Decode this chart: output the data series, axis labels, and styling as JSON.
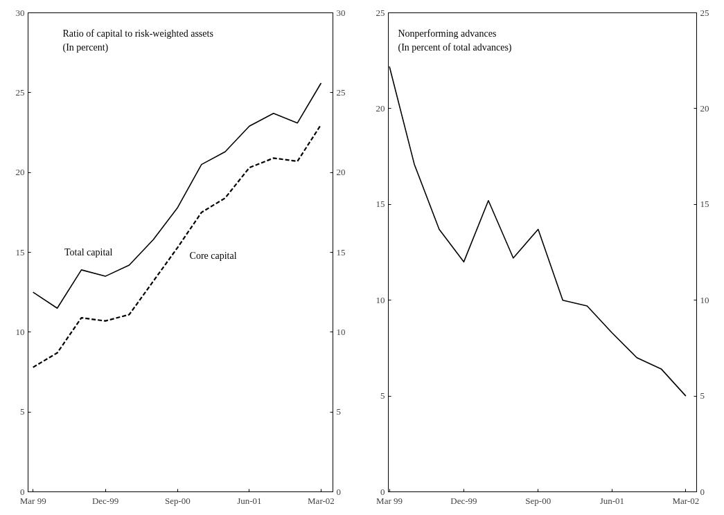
{
  "chart_data": [
    {
      "type": "line",
      "title": "Ratio of capital to risk-weighted assets\n(In percent)",
      "grid": false,
      "xlim": [
        "1999-02-10",
        "2002-04-15"
      ],
      "xticks": [
        {
          "value": "1999-03",
          "label": "Mar 99"
        },
        {
          "value": "1999-12",
          "label": "Dec-99"
        },
        {
          "value": "2000-09",
          "label": "Sep-00"
        },
        {
          "value": "2001-06",
          "label": "Jun-01"
        },
        {
          "value": "2002-03",
          "label": "Mar-02"
        }
      ],
      "ylim": [
        0,
        30
      ],
      "yticks": [
        0,
        5,
        10,
        15,
        20,
        25,
        30
      ],
      "y2lim": [
        0,
        30
      ],
      "y2ticks": [
        0,
        5,
        10,
        15,
        20,
        25,
        30
      ],
      "x": [
        "1999-03",
        "1999-06",
        "1999-09",
        "1999-12",
        "2000-03",
        "2000-06",
        "2000-09",
        "2000-12",
        "2001-03",
        "2001-06",
        "2001-09",
        "2001-12",
        "2002-03"
      ],
      "series": [
        {
          "name": "Total capital",
          "color": "#000000",
          "line_style": "solid",
          "values": [
            12.5,
            11.5,
            13.9,
            13.5,
            14.2,
            15.8,
            17.8,
            20.5,
            21.3,
            22.9,
            23.7,
            23.1,
            25.6
          ]
        },
        {
          "name": "Core capital",
          "color": "#000000",
          "line_style": "dashed",
          "values": [
            7.8,
            8.7,
            10.9,
            10.7,
            11.1,
            13.2,
            15.3,
            17.5,
            18.4,
            20.3,
            20.9,
            20.7,
            23.0
          ]
        }
      ]
    },
    {
      "type": "line",
      "title": "Nonperforming advances\n(In percent of total advances)",
      "grid": false,
      "xlim": [
        "1999-02-25",
        "2002-04-10"
      ],
      "xticks": [
        {
          "value": "1999-03",
          "label": "Mar 99"
        },
        {
          "value": "1999-12",
          "label": "Dec-99"
        },
        {
          "value": "2000-09",
          "label": "Sep-00"
        },
        {
          "value": "2001-06",
          "label": "Jun-01"
        },
        {
          "value": "2002-03",
          "label": "Mar-02"
        }
      ],
      "ylim": [
        0,
        25
      ],
      "yticks": [
        0,
        5,
        10,
        15,
        20,
        25
      ],
      "y2lim": [
        0,
        25
      ],
      "y2ticks": [
        0,
        5,
        10,
        15,
        20,
        25
      ],
      "x": [
        "1999-03",
        "1999-06",
        "1999-09",
        "1999-12",
        "2000-03",
        "2000-06",
        "2000-09",
        "2000-12",
        "2001-03",
        "2001-06",
        "2001-09",
        "2001-12",
        "2002-03"
      ],
      "series": [
        {
          "color": "#000000",
          "line_style": "solid",
          "values": [
            22.2,
            17.1,
            13.7,
            12.0,
            15.2,
            12.2,
            13.7,
            10.0,
            9.7,
            8.3,
            7.0,
            6.4,
            5.0
          ]
        }
      ]
    }
  ]
}
